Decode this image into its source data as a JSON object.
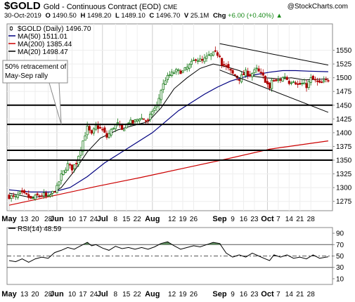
{
  "header": {
    "symbol": "$GOLD",
    "name": "Gold - Continuous Contract (EOD)",
    "exchange": "CME",
    "watermark": "@StockCharts.com",
    "date": "30-Oct-2019",
    "open_label": "O",
    "open": "1490.50",
    "high_label": "H",
    "high": "1498.20",
    "low_label": "L",
    "low": "1489.10",
    "close_label": "C",
    "close": "1496.70",
    "volume": "25.1M",
    "chg_label": "Chg",
    "chg": "+6.00 (+0.40%)",
    "chg_arrow": "▲"
  },
  "chart_data": [
    {
      "type": "candlestick",
      "title": "$GOLD (Daily) 1496.70",
      "ylim": [
        1258,
        1598
      ],
      "y_ticks": [
        1275,
        1300,
        1325,
        1350,
        1375,
        1400,
        1425,
        1450,
        1475,
        1500,
        1525,
        1550
      ],
      "x_tick_labels": [
        "May",
        "13",
        "20",
        "28",
        "Jun",
        "10",
        "17",
        "24",
        "Jul",
        "8",
        "15",
        "22",
        "Aug",
        "12",
        "19",
        "26",
        "Sep",
        "9",
        "16",
        "23",
        "Oct",
        "7",
        "14",
        "21",
        "28"
      ],
      "x_ticks_bold": [
        "May",
        "Jun",
        "Jul",
        "Aug",
        "Sep",
        "Oct"
      ],
      "legend": [
        {
          "label": "$GOLD (Daily) 1496.70",
          "color": "#000000",
          "marker": "candle"
        },
        {
          "label": "MA(50) 1511.01",
          "color": "#000080",
          "marker": "line"
        },
        {
          "label": "MA(200) 1385.44",
          "color": "#cc0000",
          "marker": "line"
        },
        {
          "label": "MA(20) 1498.47",
          "color": "#000000",
          "marker": "line"
        }
      ],
      "close_path": [
        [
          0,
          1284
        ],
        [
          3,
          1282
        ],
        [
          5,
          1290
        ],
        [
          8,
          1286
        ],
        [
          10,
          1279
        ],
        [
          13,
          1285
        ],
        [
          16,
          1287
        ],
        [
          18,
          1282
        ],
        [
          22,
          1300
        ],
        [
          24,
          1322
        ],
        [
          27,
          1342
        ],
        [
          29,
          1335
        ],
        [
          31,
          1346
        ],
        [
          34,
          1385
        ],
        [
          36,
          1409
        ],
        [
          38,
          1396
        ],
        [
          40,
          1412
        ],
        [
          43,
          1405
        ],
        [
          45,
          1392
        ],
        [
          48,
          1410
        ],
        [
          50,
          1416
        ],
        [
          52,
          1404
        ],
        [
          55,
          1420
        ],
        [
          57,
          1418
        ],
        [
          60,
          1427
        ],
        [
          62,
          1425
        ],
        [
          64,
          1420
        ],
        [
          66,
          1440
        ],
        [
          68,
          1448
        ],
        [
          70,
          1478
        ],
        [
          72,
          1497
        ],
        [
          74,
          1505
        ],
        [
          77,
          1512
        ],
        [
          80,
          1511
        ],
        [
          83,
          1522
        ],
        [
          86,
          1535
        ],
        [
          89,
          1530
        ],
        [
          92,
          1540
        ],
        [
          95,
          1545
        ],
        [
          97,
          1541
        ],
        [
          98,
          1526
        ],
        [
          100,
          1520
        ],
        [
          103,
          1507
        ],
        [
          106,
          1498
        ],
        [
          109,
          1510
        ],
        [
          111,
          1505
        ],
        [
          114,
          1515
        ],
        [
          117,
          1502
        ],
        [
          119,
          1488
        ],
        [
          120,
          1478
        ],
        [
          121,
          1496
        ],
        [
          123,
          1493
        ],
        [
          125,
          1497
        ],
        [
          127,
          1503
        ],
        [
          129,
          1492
        ],
        [
          131,
          1496
        ],
        [
          133,
          1487
        ],
        [
          135,
          1489
        ],
        [
          137,
          1485
        ],
        [
          139,
          1498
        ],
        [
          141,
          1495
        ],
        [
          143,
          1489
        ],
        [
          145,
          1492
        ],
        [
          147,
          1497
        ]
      ],
      "ma20": [
        [
          0,
          1290
        ],
        [
          10,
          1282
        ],
        [
          18,
          1285
        ],
        [
          24,
          1300
        ],
        [
          30,
          1330
        ],
        [
          36,
          1365
        ],
        [
          42,
          1390
        ],
        [
          50,
          1405
        ],
        [
          58,
          1414
        ],
        [
          64,
          1420
        ],
        [
          70,
          1445
        ],
        [
          76,
          1480
        ],
        [
          82,
          1500
        ],
        [
          88,
          1517
        ],
        [
          94,
          1525
        ],
        [
          100,
          1520
        ],
        [
          106,
          1513
        ],
        [
          112,
          1503
        ],
        [
          118,
          1500
        ],
        [
          124,
          1498
        ],
        [
          130,
          1500
        ],
        [
          136,
          1496
        ],
        [
          142,
          1497
        ],
        [
          147,
          1498
        ]
      ],
      "ma50": [
        [
          0,
          1296
        ],
        [
          10,
          1292
        ],
        [
          20,
          1292
        ],
        [
          28,
          1300
        ],
        [
          36,
          1320
        ],
        [
          44,
          1345
        ],
        [
          52,
          1365
        ],
        [
          60,
          1385
        ],
        [
          66,
          1400
        ],
        [
          72,
          1420
        ],
        [
          78,
          1440
        ],
        [
          84,
          1455
        ],
        [
          90,
          1470
        ],
        [
          96,
          1483
        ],
        [
          102,
          1494
        ],
        [
          108,
          1501
        ],
        [
          114,
          1506
        ],
        [
          120,
          1510
        ],
        [
          126,
          1513
        ],
        [
          132,
          1513
        ],
        [
          138,
          1512
        ],
        [
          147,
          1511
        ]
      ],
      "ma200": [
        [
          0,
          1268
        ],
        [
          20,
          1285
        ],
        [
          40,
          1302
        ],
        [
          60,
          1318
        ],
        [
          80,
          1335
        ],
        [
          100,
          1352
        ],
        [
          120,
          1370
        ],
        [
          147,
          1385
        ]
      ],
      "horizontal_lines": [
        1450,
        1415,
        1368,
        1350
      ],
      "channel_lines": [
        {
          "from": [
            97,
            1562
          ],
          "to": [
            147,
            1523
          ]
        },
        {
          "from": [
            97,
            1514
          ],
          "to": [
            147,
            1437
          ]
        }
      ],
      "annotation": {
        "text_line1": "50% retracement of",
        "text_line2": "May-Sep rally",
        "points_to_y": 1415
      }
    },
    {
      "type": "line",
      "title": "RSI(14) 48.59",
      "ylim": [
        0,
        100
      ],
      "y_ticks": [
        10,
        30,
        50,
        70,
        90
      ],
      "reference_lines": [
        70,
        50,
        30
      ],
      "x_tick_labels": [
        "May",
        "13",
        "20",
        "28",
        "Jun",
        "10",
        "17",
        "24",
        "Jul",
        "8",
        "15",
        "22",
        "Aug",
        "12",
        "19",
        "26",
        "Sep",
        "9",
        "16",
        "23",
        "Oct",
        "7",
        "14",
        "21",
        "28"
      ],
      "series": [
        {
          "name": "RSI(14)",
          "color": "#000000",
          "points": [
            [
              0,
              42
            ],
            [
              3,
              40
            ],
            [
              6,
              45
            ],
            [
              9,
              39
            ],
            [
              12,
              45
            ],
            [
              15,
              48
            ],
            [
              18,
              46
            ],
            [
              21,
              56
            ],
            [
              24,
              60
            ],
            [
              27,
              65
            ],
            [
              30,
              62
            ],
            [
              33,
              68
            ],
            [
              36,
              74
            ],
            [
              38,
              68
            ],
            [
              40,
              70
            ],
            [
              43,
              64
            ],
            [
              46,
              60
            ],
            [
              49,
              67
            ],
            [
              52,
              63
            ],
            [
              55,
              65
            ],
            [
              58,
              62
            ],
            [
              61,
              65
            ],
            [
              64,
              62
            ],
            [
              67,
              66
            ],
            [
              70,
              72
            ],
            [
              73,
              75
            ],
            [
              76,
              68
            ],
            [
              79,
              62
            ],
            [
              82,
              65
            ],
            [
              85,
              68
            ],
            [
              88,
              66
            ],
            [
              91,
              70
            ],
            [
              94,
              74
            ],
            [
              97,
              72
            ],
            [
              100,
              55
            ],
            [
              103,
              48
            ],
            [
              106,
              52
            ],
            [
              109,
              48
            ],
            [
              112,
              55
            ],
            [
              115,
              50
            ],
            [
              118,
              45
            ],
            [
              120,
              42
            ],
            [
              122,
              52
            ],
            [
              125,
              48
            ],
            [
              128,
              52
            ],
            [
              131,
              46
            ],
            [
              134,
              48
            ],
            [
              137,
              45
            ],
            [
              140,
              52
            ],
            [
              143,
              46
            ],
            [
              147,
              48.59
            ]
          ]
        }
      ]
    }
  ]
}
